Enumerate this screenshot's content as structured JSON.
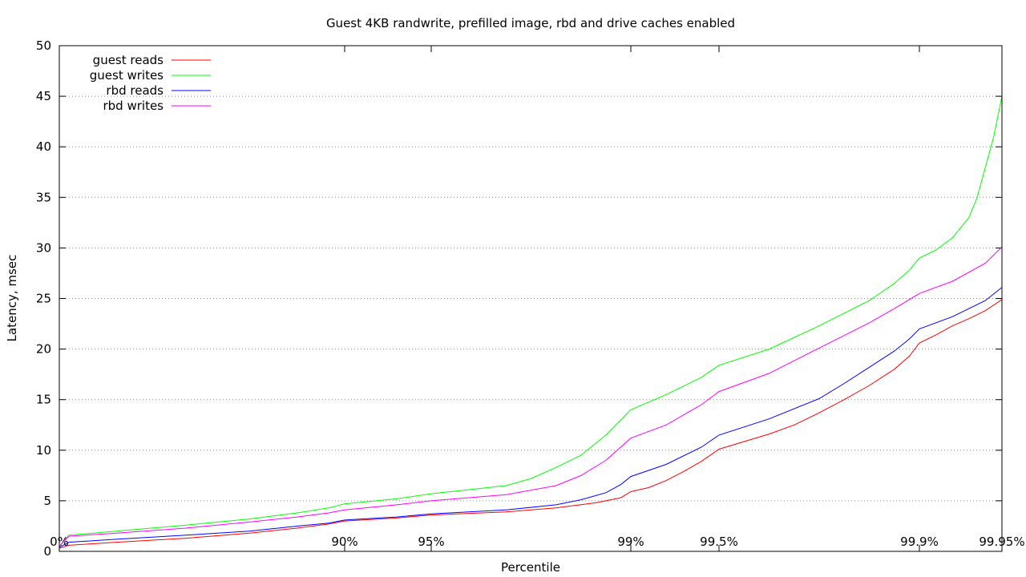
{
  "chart_data": {
    "type": "line",
    "title": "Guest 4KB randwrite, prefilled image, rbd and drive caches enabled",
    "xlabel": "Percentile",
    "ylabel": "Latency, msec",
    "ylim": [
      0,
      50
    ],
    "yticks": [
      0,
      5,
      10,
      15,
      20,
      25,
      30,
      35,
      40,
      45,
      50
    ],
    "grid": true,
    "legend_position": "top-left",
    "xticks": [
      {
        "label": "0%",
        "x": 0
      },
      {
        "label": "90%",
        "x": 90
      },
      {
        "label": "95%",
        "x": 95
      },
      {
        "label": "99%",
        "x": 99
      },
      {
        "label": "99.5%",
        "x": 99.5
      },
      {
        "label": "99.9%",
        "x": 99.9
      },
      {
        "label": "99.95%",
        "x": 99.95
      }
    ],
    "series": [
      {
        "name": "guest reads",
        "color": "#ff0000",
        "points": [
          [
            0,
            0.3
          ],
          [
            3,
            0.6
          ],
          [
            18,
            0.9
          ],
          [
            40,
            1.3
          ],
          [
            60,
            1.8
          ],
          [
            75,
            2.3
          ],
          [
            85,
            2.7
          ],
          [
            90,
            3.0
          ],
          [
            93,
            3.3
          ],
          [
            95,
            3.6
          ],
          [
            96.5,
            3.9
          ],
          [
            97.5,
            4.3
          ],
          [
            98.3,
            4.8
          ],
          [
            98.8,
            5.3
          ],
          [
            99,
            5.9
          ],
          [
            99.1,
            6.3
          ],
          [
            99.2,
            7.0
          ],
          [
            99.3,
            7.9
          ],
          [
            99.4,
            8.9
          ],
          [
            99.5,
            10.1
          ],
          [
            99.6,
            11.6
          ],
          [
            99.65,
            12.5
          ],
          [
            99.7,
            13.7
          ],
          [
            99.75,
            15.0
          ],
          [
            99.8,
            16.4
          ],
          [
            99.85,
            18.0
          ],
          [
            99.88,
            19.3
          ],
          [
            99.9,
            20.6
          ],
          [
            99.91,
            21.4
          ],
          [
            99.92,
            22.3
          ],
          [
            99.93,
            23.0
          ],
          [
            99.94,
            23.8
          ],
          [
            99.95,
            24.9
          ]
        ]
      },
      {
        "name": "guest writes",
        "color": "#00ff00",
        "points": [
          [
            0,
            0.5
          ],
          [
            3,
            1.6
          ],
          [
            18,
            2.0
          ],
          [
            40,
            2.6
          ],
          [
            60,
            3.2
          ],
          [
            75,
            3.8
          ],
          [
            85,
            4.3
          ],
          [
            90,
            4.7
          ],
          [
            93,
            5.2
          ],
          [
            95,
            5.7
          ],
          [
            96.5,
            6.5
          ],
          [
            97,
            7.2
          ],
          [
            97.5,
            8.3
          ],
          [
            98,
            9.5
          ],
          [
            98.5,
            11.5
          ],
          [
            99,
            14.0
          ],
          [
            99.2,
            15.5
          ],
          [
            99.4,
            17.2
          ],
          [
            99.5,
            18.4
          ],
          [
            99.6,
            20.0
          ],
          [
            99.7,
            22.3
          ],
          [
            99.8,
            24.8
          ],
          [
            99.85,
            26.5
          ],
          [
            99.88,
            27.8
          ],
          [
            99.9,
            29.0
          ],
          [
            99.91,
            29.8
          ],
          [
            99.92,
            31.0
          ],
          [
            99.93,
            33.0
          ],
          [
            99.935,
            35.0
          ],
          [
            99.94,
            38.0
          ],
          [
            99.945,
            41.0
          ],
          [
            99.95,
            45.0
          ]
        ]
      },
      {
        "name": "rbd reads",
        "color": "#0000ff",
        "points": [
          [
            0,
            0.4
          ],
          [
            3,
            0.9
          ],
          [
            18,
            1.2
          ],
          [
            40,
            1.6
          ],
          [
            60,
            2.0
          ],
          [
            75,
            2.5
          ],
          [
            85,
            2.8
          ],
          [
            90,
            3.1
          ],
          [
            93,
            3.4
          ],
          [
            95,
            3.7
          ],
          [
            96.5,
            4.1
          ],
          [
            97.5,
            4.6
          ],
          [
            98,
            5.1
          ],
          [
            98.5,
            5.8
          ],
          [
            98.8,
            6.6
          ],
          [
            99,
            7.4
          ],
          [
            99.2,
            8.6
          ],
          [
            99.4,
            10.3
          ],
          [
            99.5,
            11.5
          ],
          [
            99.6,
            13.1
          ],
          [
            99.7,
            15.1
          ],
          [
            99.75,
            16.6
          ],
          [
            99.8,
            18.2
          ],
          [
            99.85,
            19.8
          ],
          [
            99.88,
            21.0
          ],
          [
            99.9,
            22.0
          ],
          [
            99.92,
            23.2
          ],
          [
            99.94,
            24.8
          ],
          [
            99.95,
            26.1
          ]
        ]
      },
      {
        "name": "rbd writes",
        "color": "#ff00ff",
        "points": [
          [
            0,
            0.5
          ],
          [
            3,
            1.5
          ],
          [
            18,
            1.8
          ],
          [
            40,
            2.3
          ],
          [
            60,
            2.9
          ],
          [
            75,
            3.4
          ],
          [
            85,
            3.8
          ],
          [
            90,
            4.1
          ],
          [
            93,
            4.6
          ],
          [
            95,
            5.0
          ],
          [
            96.5,
            5.6
          ],
          [
            97.5,
            6.5
          ],
          [
            98,
            7.5
          ],
          [
            98.5,
            9.0
          ],
          [
            99,
            11.2
          ],
          [
            99.2,
            12.5
          ],
          [
            99.4,
            14.5
          ],
          [
            99.5,
            15.8
          ],
          [
            99.6,
            17.6
          ],
          [
            99.7,
            20.1
          ],
          [
            99.8,
            22.6
          ],
          [
            99.85,
            24.0
          ],
          [
            99.9,
            25.5
          ],
          [
            99.92,
            26.7
          ],
          [
            99.94,
            28.5
          ],
          [
            99.95,
            30.1
          ]
        ]
      }
    ]
  }
}
